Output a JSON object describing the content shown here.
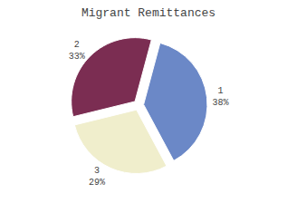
{
  "chart_data": {
    "type": "pie",
    "title": "Migrant Remittances",
    "categories": [
      "1",
      "2",
      "3"
    ],
    "values": [
      38,
      33,
      29
    ],
    "value_labels": [
      "38%",
      "33%",
      "29%"
    ],
    "colors": [
      "#6b88c7",
      "#7b2d52",
      "#f0eecc"
    ],
    "data_labels": true
  }
}
